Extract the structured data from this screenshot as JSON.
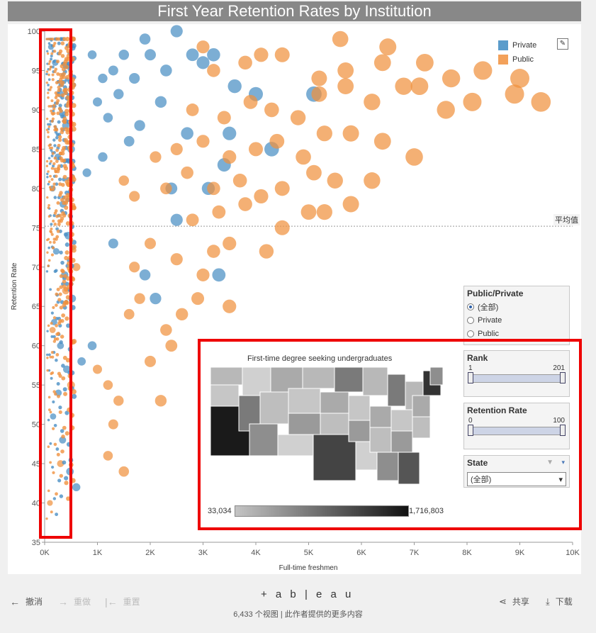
{
  "title": "First Year Retention Rates by Institution",
  "colors": {
    "private": "#4a8fc4",
    "public": "#f0913f",
    "highlight": "#ee0000"
  },
  "legend": {
    "items": [
      {
        "label": "Private",
        "color": "#5b9ccb"
      },
      {
        "label": "Public",
        "color": "#f3a15a"
      }
    ],
    "edit_icon": "pencil-icon"
  },
  "avg_line_label": "平均值",
  "chart_data": {
    "type": "scatter",
    "title": "First Year Retention Rates by Institution",
    "xlabel": "Full-time freshmen",
    "ylabel": "Retention Rate",
    "xlim": [
      0,
      10000
    ],
    "ylim": [
      35,
      100
    ],
    "x_ticks": [
      "0K",
      "1K",
      "2K",
      "3K",
      "4K",
      "5K",
      "6K",
      "7K",
      "8K",
      "9K",
      "10K"
    ],
    "y_ticks": [
      "35",
      "40",
      "45",
      "50",
      "55",
      "60",
      "65",
      "70",
      "75",
      "80",
      "85",
      "90",
      "95",
      "100"
    ],
    "reference_line": {
      "label": "平均值",
      "value": 75.2
    },
    "series": [
      {
        "name": "Private",
        "points": [
          [
            120,
            98
          ],
          [
            200,
            96
          ],
          [
            300,
            92
          ],
          [
            400,
            88
          ],
          [
            500,
            85
          ],
          [
            250,
            84
          ],
          [
            150,
            80
          ],
          [
            350,
            78
          ],
          [
            450,
            74
          ],
          [
            220,
            72
          ],
          [
            380,
            69
          ],
          [
            520,
            66
          ],
          [
            180,
            63
          ],
          [
            300,
            60
          ],
          [
            420,
            57
          ],
          [
            260,
            54
          ],
          [
            160,
            51
          ],
          [
            340,
            48
          ],
          [
            480,
            44
          ],
          [
            600,
            42
          ],
          [
            900,
            97
          ],
          [
            1100,
            94
          ],
          [
            1300,
            95
          ],
          [
            1500,
            97
          ],
          [
            1700,
            94
          ],
          [
            1900,
            99
          ],
          [
            2000,
            97
          ],
          [
            2300,
            95
          ],
          [
            2500,
            100
          ],
          [
            1000,
            91
          ],
          [
            1200,
            89
          ],
          [
            1400,
            92
          ],
          [
            1800,
            88
          ],
          [
            2200,
            91
          ],
          [
            2800,
            97
          ],
          [
            3000,
            96
          ],
          [
            3200,
            97
          ],
          [
            3600,
            93
          ],
          [
            4000,
            92
          ],
          [
            2700,
            87
          ],
          [
            3400,
            83
          ],
          [
            4300,
            85
          ],
          [
            1600,
            86
          ],
          [
            1100,
            84
          ],
          [
            2400,
            80
          ],
          [
            2500,
            76
          ],
          [
            3100,
            80
          ],
          [
            1300,
            73
          ],
          [
            1900,
            69
          ],
          [
            2100,
            66
          ],
          [
            3300,
            69
          ],
          [
            5100,
            92
          ],
          [
            3500,
            87
          ],
          [
            800,
            82
          ],
          [
            900,
            60
          ],
          [
            700,
            58
          ]
        ]
      },
      {
        "name": "Public",
        "points": [
          [
            100,
            40
          ],
          [
            300,
            45
          ],
          [
            500,
            55
          ],
          [
            150,
            62
          ],
          [
            400,
            67
          ],
          [
            600,
            70
          ],
          [
            1000,
            57
          ],
          [
            1200,
            55
          ],
          [
            1300,
            50
          ],
          [
            1400,
            53
          ],
          [
            1200,
            46
          ],
          [
            1500,
            44
          ],
          [
            2000,
            58
          ],
          [
            2200,
            53
          ],
          [
            1600,
            64
          ],
          [
            1800,
            66
          ],
          [
            2300,
            62
          ],
          [
            2400,
            60
          ],
          [
            2600,
            64
          ],
          [
            2900,
            66
          ],
          [
            3500,
            65
          ],
          [
            1700,
            70
          ],
          [
            2000,
            73
          ],
          [
            2500,
            71
          ],
          [
            3000,
            69
          ],
          [
            3200,
            72
          ],
          [
            3500,
            73
          ],
          [
            4200,
            72
          ],
          [
            2800,
            76
          ],
          [
            3300,
            77
          ],
          [
            3800,
            78
          ],
          [
            4500,
            75
          ],
          [
            5000,
            77
          ],
          [
            5300,
            77
          ],
          [
            5800,
            78
          ],
          [
            2300,
            80
          ],
          [
            2700,
            82
          ],
          [
            3200,
            80
          ],
          [
            3700,
            81
          ],
          [
            4100,
            79
          ],
          [
            4500,
            80
          ],
          [
            5100,
            82
          ],
          [
            5500,
            81
          ],
          [
            6200,
            81
          ],
          [
            2500,
            85
          ],
          [
            3000,
            86
          ],
          [
            3500,
            84
          ],
          [
            4000,
            85
          ],
          [
            4400,
            86
          ],
          [
            4900,
            84
          ],
          [
            5300,
            87
          ],
          [
            5800,
            87
          ],
          [
            6400,
            86
          ],
          [
            7000,
            84
          ],
          [
            2800,
            90
          ],
          [
            3400,
            89
          ],
          [
            3900,
            91
          ],
          [
            4300,
            90
          ],
          [
            4800,
            89
          ],
          [
            5200,
            92
          ],
          [
            5700,
            93
          ],
          [
            6200,
            91
          ],
          [
            6800,
            93
          ],
          [
            7600,
            90
          ],
          [
            8100,
            91
          ],
          [
            8900,
            92
          ],
          [
            9400,
            91
          ],
          [
            3200,
            95
          ],
          [
            3800,
            96
          ],
          [
            4500,
            97
          ],
          [
            5200,
            94
          ],
          [
            5700,
            95
          ],
          [
            6400,
            96
          ],
          [
            7100,
            93
          ],
          [
            7700,
            94
          ],
          [
            8300,
            95
          ],
          [
            3000,
            98
          ],
          [
            4100,
            97
          ],
          [
            5600,
            99
          ],
          [
            6500,
            98
          ],
          [
            7200,
            96
          ],
          [
            9000,
            94
          ],
          [
            2100,
            84
          ],
          [
            1700,
            79
          ],
          [
            1500,
            81
          ]
        ]
      }
    ]
  },
  "filters": {
    "public_private": {
      "title": "Public/Private",
      "options": [
        "(全部)",
        "Private",
        "Public"
      ],
      "selected": "(全部)"
    },
    "rank": {
      "title": "Rank",
      "min": "1",
      "max": "201"
    },
    "retention_rate": {
      "title": "Retention Rate",
      "min": "0",
      "max": "100"
    },
    "state": {
      "title": "State",
      "value": "(全部)"
    }
  },
  "map": {
    "title": "First-time degree seeking undergraduates",
    "min_label": "33,034",
    "max_label": "1,716,803"
  },
  "footer": {
    "undo": "撤消",
    "redo": "重做",
    "reset": "重置",
    "logo": "+ a b | e a u",
    "views": "6,433 个视图 | 此作者提供的更多内容",
    "share": "共享",
    "download": "下载"
  }
}
